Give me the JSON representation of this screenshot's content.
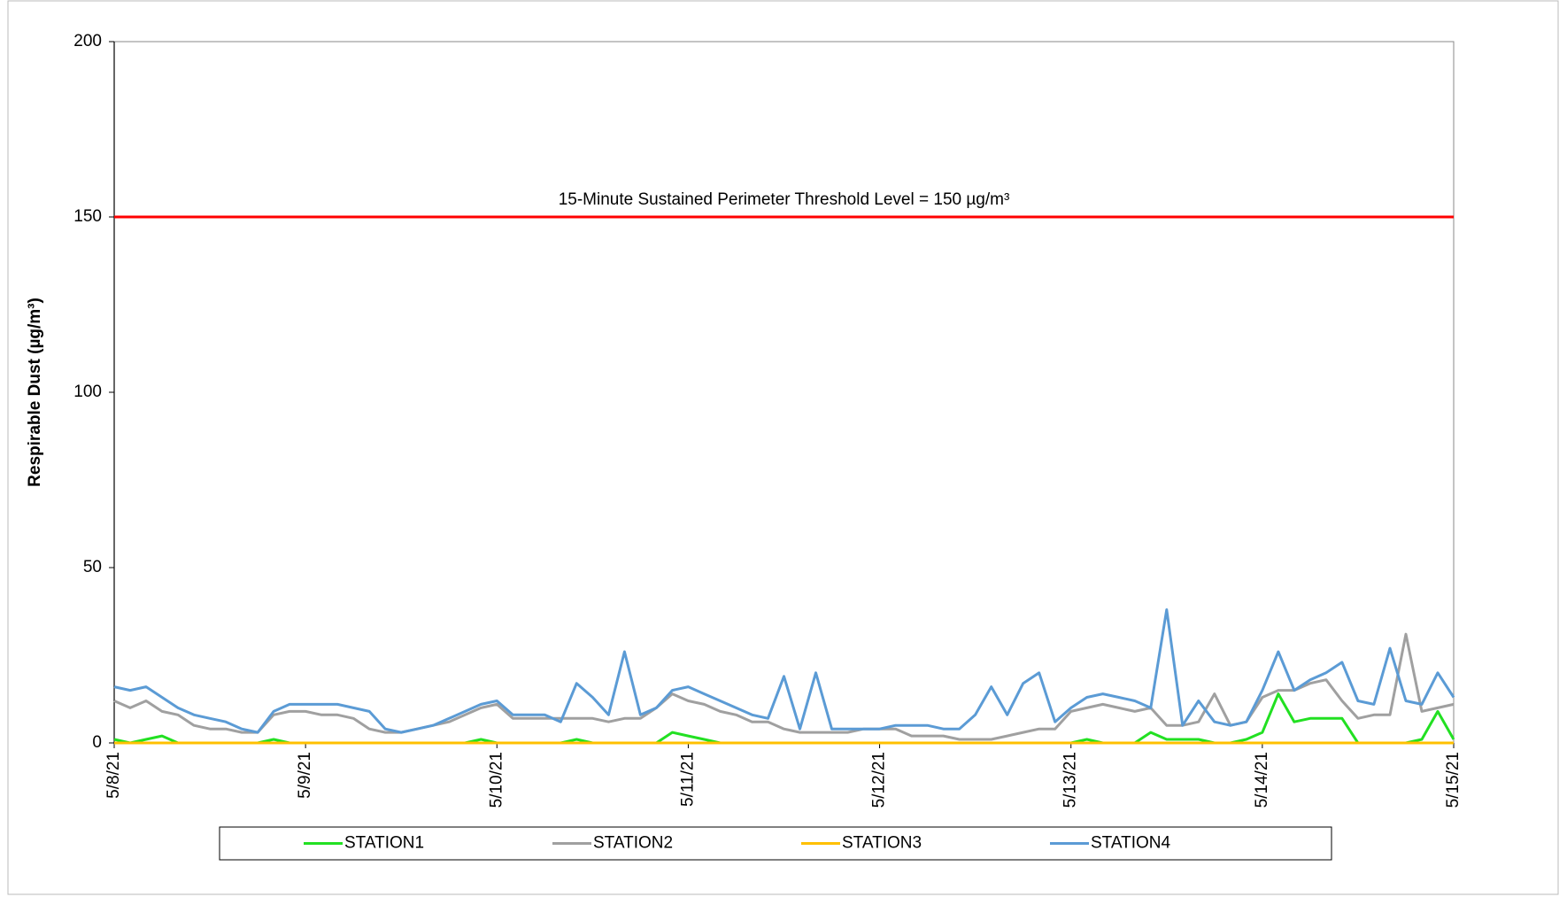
{
  "chart_data": {
    "type": "line",
    "y_label": "Respirable Dust (µg/m³)",
    "x": [
      0,
      2,
      4,
      6,
      8,
      10,
      12,
      14,
      16,
      18,
      20,
      22,
      24,
      26,
      28,
      30,
      32,
      34,
      36,
      38,
      40,
      42,
      44,
      46,
      48,
      50,
      52,
      54,
      56,
      58,
      60,
      62,
      64,
      66,
      68,
      70,
      72,
      74,
      76,
      78,
      80,
      82,
      84,
      86,
      88,
      90,
      92,
      94,
      96,
      98,
      100,
      102,
      104,
      106,
      108,
      110,
      112,
      114,
      116,
      118,
      120,
      122,
      124,
      126,
      128,
      130,
      132,
      134,
      136,
      138,
      140,
      142,
      144,
      146,
      148,
      150,
      152,
      154,
      156,
      158,
      160,
      162,
      164,
      166,
      168
    ],
    "xlim": [
      0,
      168
    ],
    "xticks": [
      {
        "value": 0,
        "label": "5/8/21"
      },
      {
        "value": 24,
        "label": "5/9/21"
      },
      {
        "value": 48,
        "label": "5/10/21"
      },
      {
        "value": 72,
        "label": "5/11/21"
      },
      {
        "value": 96,
        "label": "5/12/21"
      },
      {
        "value": 120,
        "label": "5/13/21"
      },
      {
        "value": 144,
        "label": "5/14/21"
      },
      {
        "value": 168,
        "label": "5/15/21"
      }
    ],
    "ylim": [
      0,
      200
    ],
    "yticks": [
      0,
      50,
      100,
      150,
      200
    ],
    "series": [
      {
        "name": "STATION1",
        "color": "#22e022",
        "values": [
          1,
          0,
          1,
          2,
          0,
          0,
          0,
          0,
          0,
          0,
          1,
          0,
          0,
          0,
          0,
          0,
          0,
          0,
          0,
          0,
          0,
          0,
          0,
          1,
          0,
          0,
          0,
          0,
          0,
          1,
          0,
          0,
          0,
          0,
          0,
          3,
          2,
          1,
          0,
          0,
          0,
          0,
          0,
          0,
          0,
          0,
          0,
          0,
          0,
          0,
          0,
          0,
          0,
          0,
          0,
          0,
          0,
          0,
          0,
          0,
          0,
          1,
          0,
          0,
          0,
          3,
          1,
          1,
          1,
          0,
          0,
          1,
          3,
          14,
          6,
          7,
          7,
          7,
          0,
          0,
          0,
          0,
          1,
          9,
          1
        ]
      },
      {
        "name": "STATION2",
        "color": "#a0a0a0",
        "values": [
          12,
          10,
          12,
          9,
          8,
          5,
          4,
          4,
          3,
          3,
          8,
          9,
          9,
          8,
          8,
          7,
          4,
          3,
          3,
          4,
          5,
          6,
          8,
          10,
          11,
          7,
          7,
          7,
          7,
          7,
          7,
          6,
          7,
          7,
          10,
          14,
          12,
          11,
          9,
          8,
          6,
          6,
          4,
          3,
          3,
          3,
          3,
          4,
          4,
          4,
          2,
          2,
          2,
          1,
          1,
          1,
          2,
          3,
          4,
          4,
          9,
          10,
          11,
          10,
          9,
          10,
          5,
          5,
          6,
          14,
          5,
          6,
          13,
          15,
          15,
          17,
          18,
          12,
          7,
          8,
          8,
          31,
          9,
          10,
          11
        ]
      },
      {
        "name": "STATION3",
        "color": "#ffc000",
        "values": [
          0,
          0,
          0,
          0,
          0,
          0,
          0,
          0,
          0,
          0,
          0,
          0,
          0,
          0,
          0,
          0,
          0,
          0,
          0,
          0,
          0,
          0,
          0,
          0,
          0,
          0,
          0,
          0,
          0,
          0,
          0,
          0,
          0,
          0,
          0,
          0,
          0,
          0,
          0,
          0,
          0,
          0,
          0,
          0,
          0,
          0,
          0,
          0,
          0,
          0,
          0,
          0,
          0,
          0,
          0,
          0,
          0,
          0,
          0,
          0,
          0,
          0,
          0,
          0,
          0,
          0,
          0,
          0,
          0,
          0,
          0,
          0,
          0,
          0,
          0,
          0,
          0,
          0,
          0,
          0,
          0,
          0,
          0,
          0,
          0
        ]
      },
      {
        "name": "STATION4",
        "color": "#5b9bd5",
        "values": [
          16,
          15,
          16,
          13,
          10,
          8,
          7,
          6,
          4,
          3,
          9,
          11,
          11,
          11,
          11,
          10,
          9,
          4,
          3,
          4,
          5,
          7,
          9,
          11,
          12,
          8,
          8,
          8,
          6,
          17,
          13,
          8,
          26,
          8,
          10,
          15,
          16,
          14,
          12,
          10,
          8,
          7,
          19,
          4,
          20,
          4,
          4,
          4,
          4,
          5,
          5,
          5,
          4,
          4,
          8,
          16,
          8,
          17,
          20,
          6,
          10,
          13,
          14,
          13,
          12,
          10,
          38,
          5,
          12,
          6,
          5,
          6,
          15,
          26,
          15,
          18,
          20,
          23,
          12,
          11,
          27,
          12,
          11,
          20,
          13
        ]
      }
    ],
    "reference_line": {
      "value": 150,
      "color": "#ff0000",
      "label": "15-Minute Sustained Perimeter Threshold Level = 150 µg/m³"
    },
    "legend": "bottom"
  }
}
